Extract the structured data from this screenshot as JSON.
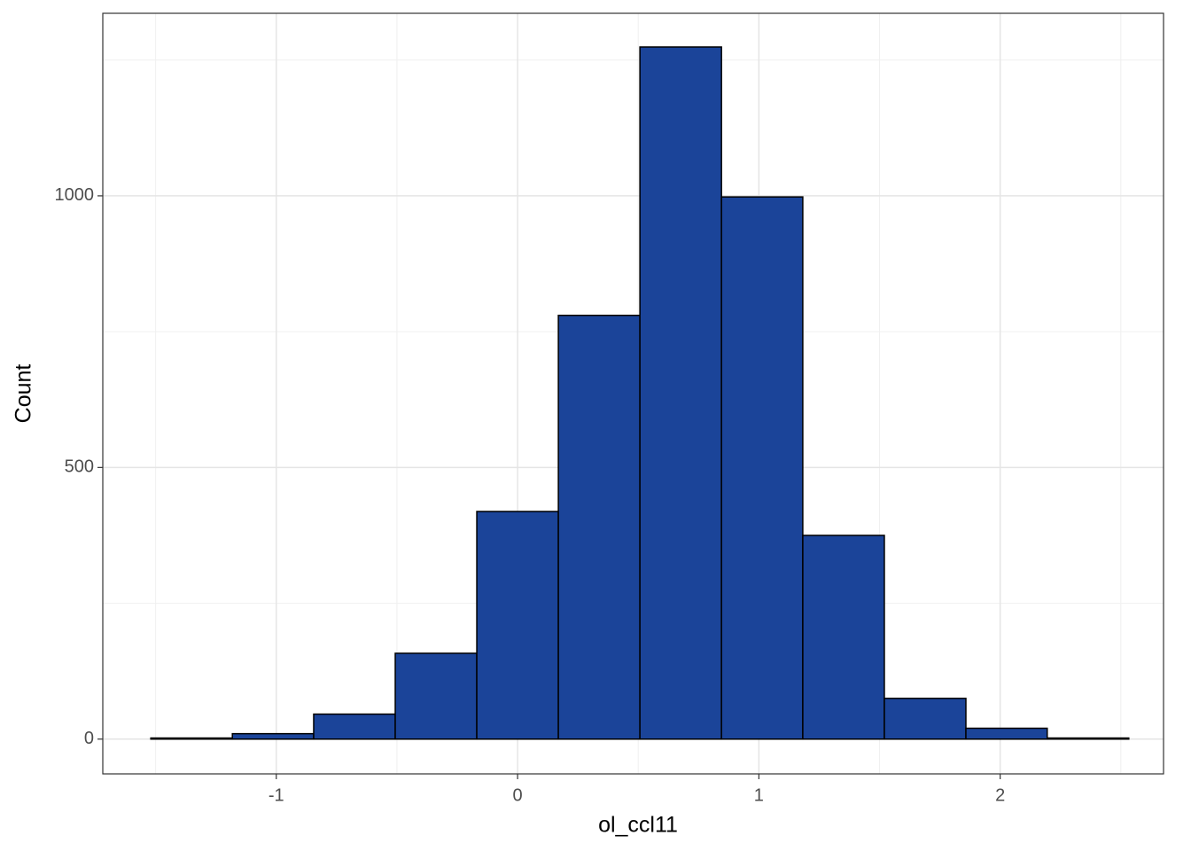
{
  "chart_data": {
    "type": "histogram",
    "x_label": "ol_ccl11",
    "y_label": "Count",
    "bins": [
      -1.52,
      -1.182,
      -0.845,
      -0.507,
      -0.169,
      0.169,
      0.507,
      0.845,
      1.182,
      1.52,
      1.858,
      2.195,
      2.533
    ],
    "counts": [
      2,
      10,
      46,
      158,
      419,
      780,
      1274,
      998,
      375,
      75,
      20,
      2
    ],
    "color": "#1b4499",
    "edge_color": "#000000",
    "xlim": [
      -1.719,
      2.677
    ],
    "ylim": [
      -64,
      1336
    ],
    "xticks": [
      -1,
      0,
      1,
      2
    ],
    "yticks": [
      0,
      500,
      1000
    ],
    "x_minor_grid": [
      -1.5,
      -0.5,
      0.5,
      1.5,
      2.5
    ],
    "y_minor_grid": [
      250,
      750,
      1250
    ],
    "grid": true
  }
}
